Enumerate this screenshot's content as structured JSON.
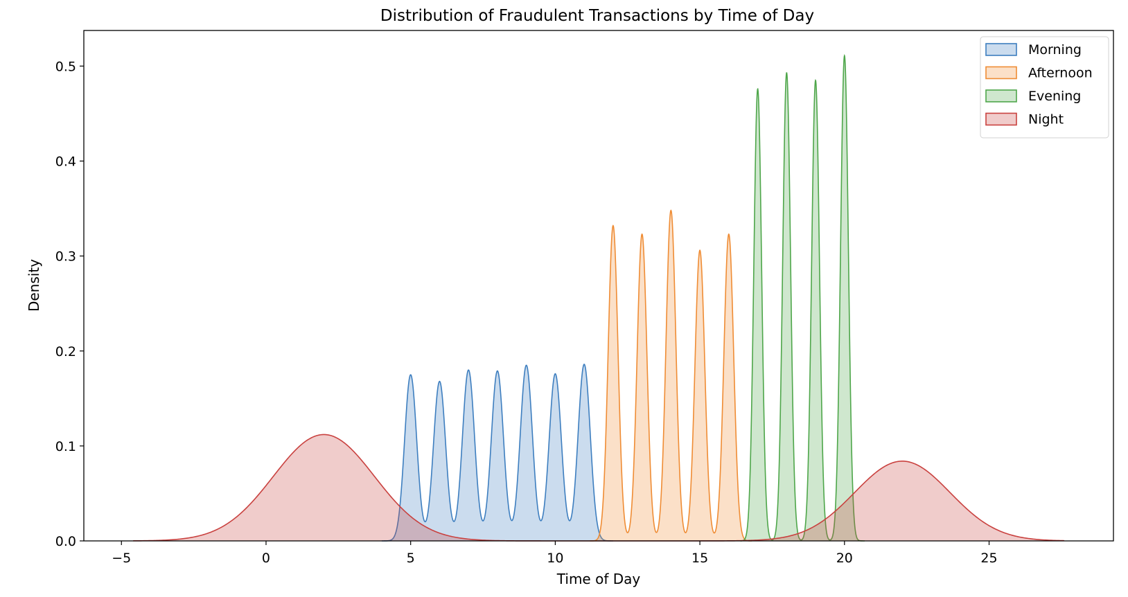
{
  "chart_data": {
    "type": "area",
    "title": "Distribution of Fraudulent Transactions by Time of Day",
    "xlabel": "Time of Day",
    "ylabel": "Density",
    "xlim": [
      -6.3,
      29.3
    ],
    "ylim": [
      0,
      0.5375
    ],
    "x_ticks": [
      -5,
      0,
      5,
      10,
      15,
      20,
      25
    ],
    "y_ticks": [
      0.0,
      0.1,
      0.2,
      0.3,
      0.4,
      0.5
    ],
    "x_tick_labels": [
      "−5",
      "0",
      "5",
      "10",
      "15",
      "20",
      "25"
    ],
    "y_tick_labels": [
      "0.0",
      "0.1",
      "0.2",
      "0.3",
      "0.4",
      "0.5"
    ],
    "legend_position": "top-right",
    "grid": false,
    "series": [
      {
        "name": "Morning",
        "color": "#3d7ebf",
        "fill": "#c9dcec",
        "x_range": [
          4.0,
          12.0
        ],
        "sigma": 0.21,
        "peaks": [
          {
            "x": 5,
            "y": 0.175
          },
          {
            "x": 6,
            "y": 0.168
          },
          {
            "x": 7,
            "y": 0.18
          },
          {
            "x": 8,
            "y": 0.179
          },
          {
            "x": 9,
            "y": 0.185
          },
          {
            "x": 10,
            "y": 0.176
          },
          {
            "x": 11,
            "y": 0.186
          }
        ]
      },
      {
        "name": "Afternoon",
        "color": "#ef8c34",
        "fill": "#f9dbc0",
        "x_range": [
          11.2,
          16.8
        ],
        "sigma": 0.17,
        "peaks": [
          {
            "x": 12,
            "y": 0.332
          },
          {
            "x": 13,
            "y": 0.323
          },
          {
            "x": 14,
            "y": 0.348
          },
          {
            "x": 15,
            "y": 0.306
          },
          {
            "x": 16,
            "y": 0.323
          }
        ]
      },
      {
        "name": "Evening",
        "color": "#4ea64a",
        "fill": "#cbe6c8",
        "x_range": [
          16.4,
          20.7
        ],
        "sigma": 0.135,
        "peaks": [
          {
            "x": 17,
            "y": 0.476
          },
          {
            "x": 18,
            "y": 0.493
          },
          {
            "x": 19,
            "y": 0.485
          },
          {
            "x": 20,
            "y": 0.511
          }
        ]
      },
      {
        "name": "Night",
        "color": "#c9413f",
        "fill": "#eac5c6",
        "x_range": [
          -4.6,
          27.6
        ],
        "bumps": [
          {
            "x": 2.0,
            "y": 0.112,
            "sigma": 1.75
          },
          {
            "x": 22.0,
            "y": 0.084,
            "sigma": 1.65
          }
        ]
      }
    ]
  }
}
